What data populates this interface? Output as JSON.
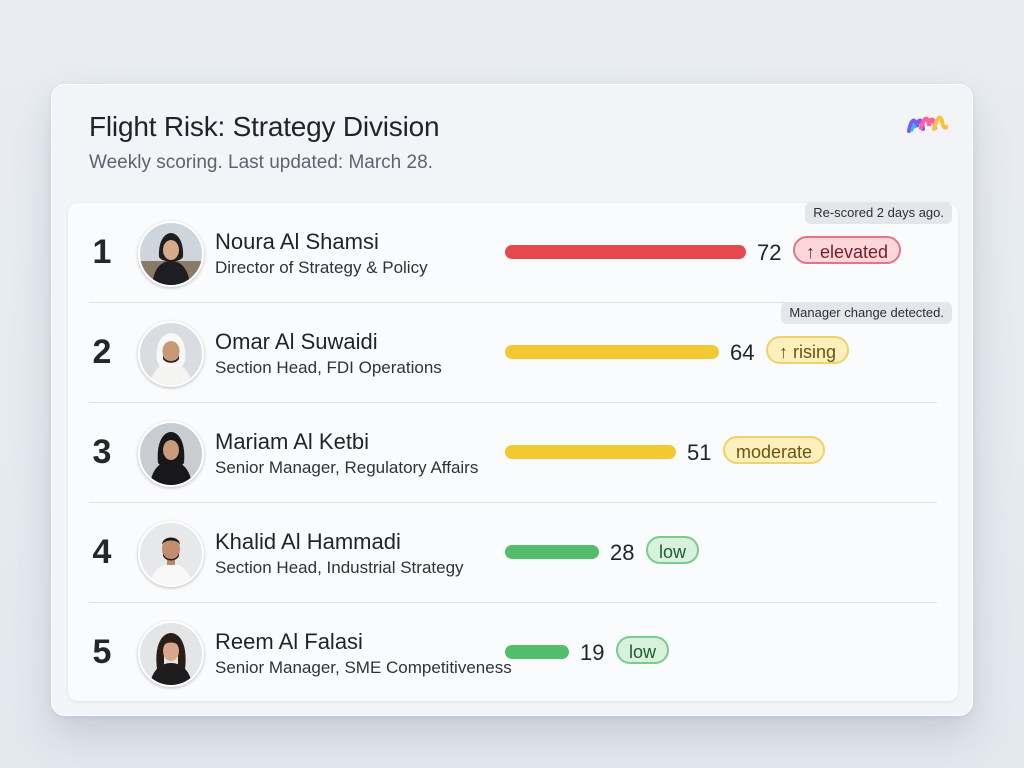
{
  "header": {
    "title": "Flight Risk: Strategy Division",
    "subtitle": "Weekly scoring. Last updated: March 28."
  },
  "logo": {
    "icon": "brand-logo-icon"
  },
  "colors": {
    "elevated": "#e5484d",
    "rising": "#f2c930",
    "moderate": "#f2c930",
    "low": "#52be6c"
  },
  "employees": [
    {
      "rank": "1",
      "name": "Noura Al Shamsi",
      "role": "Director of Strategy & Policy",
      "score": 72,
      "score_label": "72",
      "status": "↑ elevated",
      "note": "Re-scored 2 days ago."
    },
    {
      "rank": "2",
      "name": "Omar Al Suwaidi",
      "role": "Section Head, FDI Operations",
      "score": 64,
      "score_label": "64",
      "status": "↑ rising",
      "note": "Manager change detected."
    },
    {
      "rank": "3",
      "name": "Mariam Al Ketbi",
      "role": "Senior Manager, Regulatory Affairs",
      "score": 51,
      "score_label": "51",
      "status": "moderate"
    },
    {
      "rank": "4",
      "name": "Khalid Al Hammadi",
      "role": "Section Head, Industrial Strategy",
      "score": 28,
      "score_label": "28",
      "status": "low"
    },
    {
      "rank": "5",
      "name": "Reem Al Falasi",
      "role": "Senior Manager, SME Competitiveness",
      "score": 19,
      "score_label": "19",
      "status": "low"
    }
  ]
}
